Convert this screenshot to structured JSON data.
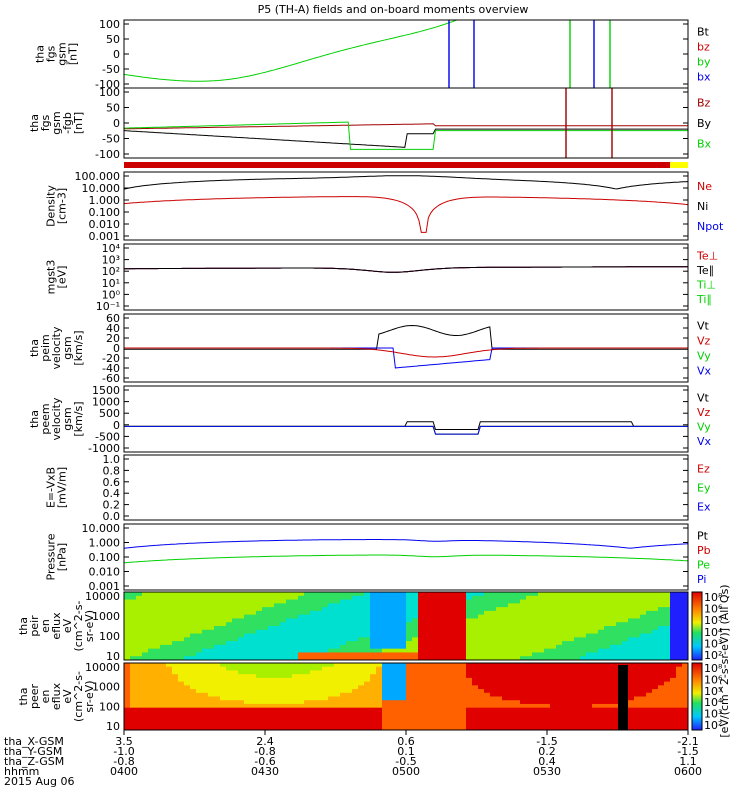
{
  "title": "P5 (TH-A) fields and on-board moments overview",
  "colors": {
    "black": "#000000",
    "red": "#cc0000",
    "green": "#00d000",
    "blue": "#0000ee",
    "darkred": "#a00000",
    "yellow": "#ffff00"
  },
  "x_axis": {
    "rows": [
      {
        "label": "tha_X-GSM",
        "values": [
          "3.5",
          "2.4",
          "0.6",
          "-1.5",
          "-2.1"
        ]
      },
      {
        "label": "tha_Y-GSM",
        "values": [
          "-1.0",
          "-0.8",
          "0.1",
          "0.2",
          "-1.5"
        ]
      },
      {
        "label": "tha_Z-GSM",
        "values": [
          "-0.8",
          "-0.6",
          "-0.5",
          "0.4",
          "1.1"
        ]
      },
      {
        "label": "hhmm",
        "values": [
          "0400",
          "0430",
          "0500",
          "0530",
          "0600"
        ]
      }
    ],
    "date": "2015 Aug 06"
  },
  "chart_data": [
    {
      "id": "fgs_gsm",
      "type": "line",
      "ylabel": [
        "tha",
        "fgs",
        "gsm",
        "[nT]"
      ],
      "ylim": [
        -100,
        100
      ],
      "yticks": [
        "100",
        "50",
        "0",
        "-50",
        "-100"
      ],
      "legend": [
        {
          "name": "Bt",
          "color": "black"
        },
        {
          "name": "bz",
          "color": "red"
        },
        {
          "name": "by",
          "color": "green"
        },
        {
          "name": "bx",
          "color": "blue"
        }
      ]
    },
    {
      "id": "fgs_gsm_zoom",
      "type": "line",
      "ylabel": [
        "tha",
        "fgs",
        "gsm",
        "-fgb",
        "[nT]"
      ],
      "ylim": [
        -120,
        110
      ],
      "yticks": [
        "100",
        "50",
        "0",
        "-50",
        "-100"
      ],
      "legend": [
        {
          "name": "Bz",
          "color": "darkred"
        },
        {
          "name": "By",
          "color": "black"
        },
        {
          "name": "Bx",
          "color": "green"
        }
      ]
    },
    {
      "id": "density",
      "type": "line",
      "ylabel": [
        "Density",
        "[cm-3]"
      ],
      "scale": "log",
      "ylim": [
        0.001,
        100
      ],
      "yticks": [
        "100.000",
        "10.000",
        "1.000",
        "0.100",
        "0.010",
        "0.001"
      ],
      "legend": [
        {
          "name": "Ne",
          "color": "red"
        },
        {
          "name": "Ni",
          "color": "black"
        },
        {
          "name": "Npot",
          "color": "blue"
        }
      ]
    },
    {
      "id": "temperature",
      "type": "line",
      "ylabel": [
        "mgst3",
        "[eV]"
      ],
      "scale": "log",
      "ylim": [
        0.1,
        10000
      ],
      "yticks": [
        "10⁴",
        "10³",
        "10²",
        "10¹",
        "10⁰",
        "10⁻¹"
      ],
      "legend": [
        {
          "name": "Te⊥",
          "color": "red"
        },
        {
          "name": "Te∥",
          "color": "black"
        },
        {
          "name": "Ti⊥",
          "color": "green"
        },
        {
          "name": "Ti∥",
          "color": "green"
        }
      ]
    },
    {
      "id": "peim_velocity",
      "type": "line",
      "ylabel": [
        "tha",
        "peim",
        "velocity",
        "gsm",
        "[km/s]"
      ],
      "ylim": [
        -60,
        60
      ],
      "yticks": [
        "60",
        "40",
        "20",
        "0",
        "-20",
        "-40",
        "-60"
      ],
      "legend": [
        {
          "name": "Vt",
          "color": "black"
        },
        {
          "name": "Vz",
          "color": "red"
        },
        {
          "name": "Vy",
          "color": "green"
        },
        {
          "name": "Vx",
          "color": "blue"
        }
      ]
    },
    {
      "id": "peem_velocity",
      "type": "line",
      "ylabel": [
        "tha",
        "peem",
        "velocity",
        "gsm",
        "[km/s]"
      ],
      "ylim": [
        -1000,
        1500
      ],
      "yticks": [
        "1500",
        "1000",
        "500",
        "0",
        "-500",
        "-1000"
      ],
      "legend": [
        {
          "name": "Vt",
          "color": "black"
        },
        {
          "name": "Vz",
          "color": "red"
        },
        {
          "name": "Vy",
          "color": "green"
        },
        {
          "name": "Vx",
          "color": "blue"
        }
      ]
    },
    {
      "id": "efield",
      "type": "line",
      "ylabel": [
        "E=-VxB",
        "[mV/m]"
      ],
      "ylim": [
        0,
        1
      ],
      "yticks": [
        "1.0",
        "0.8",
        "0.6",
        "0.4",
        "0.2",
        "0.0"
      ],
      "legend": [
        {
          "name": "Ez",
          "color": "red"
        },
        {
          "name": "Ey",
          "color": "green"
        },
        {
          "name": "Ex",
          "color": "blue"
        }
      ]
    },
    {
      "id": "pressure",
      "type": "line",
      "ylabel": [
        "Pressure",
        "[nPa]"
      ],
      "scale": "log",
      "ylim": [
        0.001,
        10
      ],
      "yticks": [
        "10.000",
        "1.000",
        "0.100",
        "0.010",
        "0.001"
      ],
      "legend": [
        {
          "name": "Pt",
          "color": "black"
        },
        {
          "name": "Pb",
          "color": "red"
        },
        {
          "name": "Pe",
          "color": "green"
        },
        {
          "name": "Pi",
          "color": "blue"
        }
      ]
    },
    {
      "id": "peir_spec",
      "type": "heatmap",
      "ylabel": [
        "tha",
        "peir",
        "en",
        "eflux",
        "eV",
        "(cm^2-s-",
        "sr-eV)"
      ],
      "scale": "log",
      "ylim": [
        5,
        20000
      ],
      "yticks": [
        "10000",
        "1000",
        "100",
        "10"
      ]
    },
    {
      "id": "peer_spec",
      "type": "heatmap",
      "ylabel": [
        "tha",
        "peer",
        "en",
        "eflux",
        "eV",
        "(cm^2-s-",
        "sr-eV)"
      ],
      "scale": "log",
      "ylim": [
        5,
        20000
      ],
      "yticks": [
        "10000",
        "1000",
        "100",
        "10"
      ]
    }
  ],
  "colorbar": {
    "label": "[eV/(cm^2-s-sr-eV)] (All Qs)",
    "ticks_top": [
      "10⁸",
      "10⁶",
      "10⁵",
      "10⁴",
      "10³",
      "10²"
    ],
    "ticks_bottom": [
      "10⁸",
      "10⁶",
      "10⁵",
      "10⁴",
      "10³",
      "10²"
    ]
  }
}
